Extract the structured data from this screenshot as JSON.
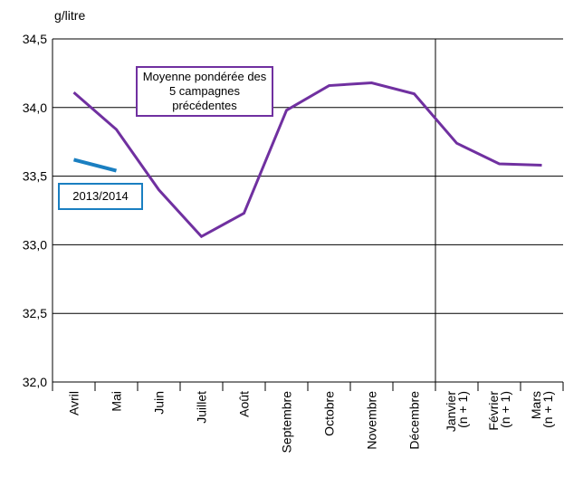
{
  "chart_data": {
    "type": "line",
    "y_label": "g/litre",
    "categories": [
      "Avril",
      "Mai",
      "Juin",
      "Juillet",
      "Août",
      "Septembre",
      "Octobre",
      "Novembre",
      "Décembre",
      "Janvier (n + 1)",
      "Février (n + 1)",
      "Mars (n + 1)"
    ],
    "series": [
      {
        "name": "Moyenne pondérée des 5 campagnes précédentes",
        "color": "#7030a0",
        "values": [
          34.11,
          33.84,
          33.4,
          33.06,
          33.23,
          33.98,
          34.16,
          34.18,
          34.1,
          33.74,
          33.59,
          33.58
        ]
      },
      {
        "name": "2013/2014",
        "color": "#1a7fc1",
        "values": [
          33.62,
          33.54,
          null,
          null,
          null,
          null,
          null,
          null,
          null,
          null,
          null,
          null
        ]
      }
    ],
    "ylim": [
      32.0,
      34.5
    ],
    "yticks": [
      {
        "value": 32.0,
        "label": "32,0"
      },
      {
        "value": 32.5,
        "label": "32,5"
      },
      {
        "value": 33.0,
        "label": "33,0"
      },
      {
        "value": 33.5,
        "label": "33,5"
      },
      {
        "value": 34.0,
        "label": "34,0"
      },
      {
        "value": 34.5,
        "label": "34,5"
      }
    ],
    "grid": true
  }
}
